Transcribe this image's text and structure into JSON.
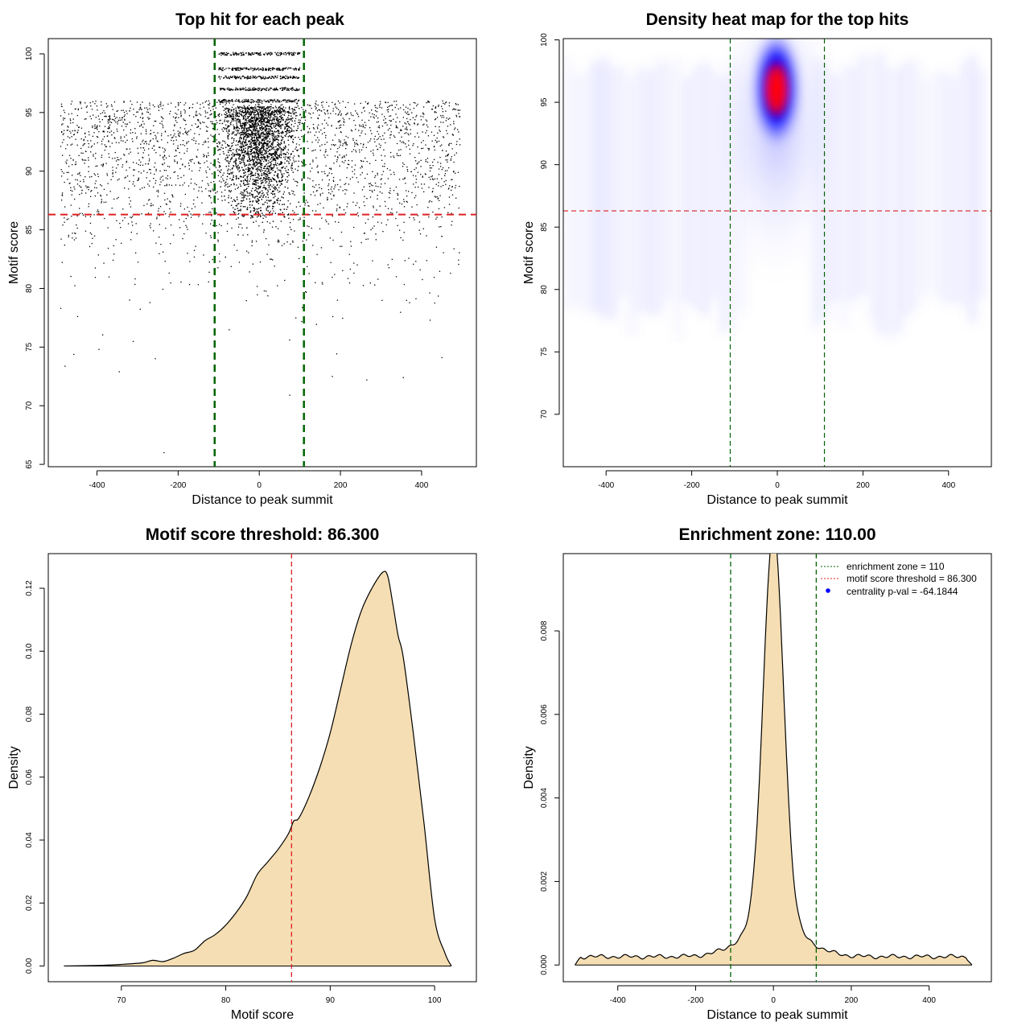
{
  "chart_data": [
    {
      "id": "scatter",
      "type": "scatter",
      "title": "Top hit for each peak",
      "xlabel": "Distance to peak summit",
      "ylabel": "Motif score",
      "xlim": [
        -520,
        535
      ],
      "ylim": [
        64.8,
        101.3
      ],
      "xticks": [
        -400,
        -200,
        0,
        200,
        400
      ],
      "yticks": [
        65,
        70,
        75,
        80,
        85,
        90,
        95,
        100
      ],
      "grid": false,
      "hline": 86.3,
      "vlines": [
        -110,
        110
      ],
      "hline_color": "#dd2020",
      "vline_color": "#006400",
      "point_color": "#000000",
      "background_points": {
        "x_range": [
          -490,
          495
        ],
        "y_distribution": "peaked near 96, spread 72-99"
      },
      "central_points": {
        "x_range": [
          -110,
          110
        ],
        "y_concentration": [
          88,
          99.5
        ],
        "peak_rows": [
          96,
          97,
          98,
          98.7,
          100
        ]
      },
      "sample_points": [
        {
          "x": -235,
          "y": 66.0
        },
        {
          "x": 75,
          "y": 70.9
        },
        {
          "x": 265,
          "y": 72.2
        },
        {
          "x": -345,
          "y": 72.9
        },
        {
          "x": 180,
          "y": 72.5
        },
        {
          "x": 355,
          "y": 72.4
        },
        {
          "x": -395,
          "y": 74.8
        },
        {
          "x": 450,
          "y": 74.1
        }
      ]
    },
    {
      "id": "heatmap",
      "type": "heatmap",
      "title": "Density heat map for the top hits",
      "xlabel": "Distance to peak summit",
      "ylabel": "Motif score",
      "xlim": [
        -500,
        500
      ],
      "ylim": [
        65.8,
        100.1
      ],
      "xticks": [
        -400,
        -200,
        0,
        200,
        400
      ],
      "yticks": [
        70,
        75,
        80,
        85,
        90,
        95,
        100
      ],
      "hline": 86.3,
      "vlines": [
        -110,
        110
      ],
      "peak": {
        "x": 0,
        "y": 95.7
      },
      "colors": [
        "#ffffff",
        "#0000ff",
        "#ff0000"
      ]
    },
    {
      "id": "score_density",
      "type": "area",
      "title": "Motif score threshold: 86.300",
      "xlabel": "Motif score",
      "ylabel": "Density",
      "xlim": [
        63,
        104
      ],
      "ylim": [
        -0.005,
        0.131
      ],
      "xticks": [
        70,
        80,
        90,
        100
      ],
      "yticks": [
        0.0,
        0.02,
        0.04,
        0.06,
        0.08,
        0.1,
        0.12
      ],
      "ytick_labels": [
        "0.00",
        "0.02",
        "0.04",
        "0.06",
        "0.08",
        "0.10",
        "0.12"
      ],
      "vline": 86.3,
      "fill": "#f5deb3",
      "x": [
        64.5,
        68,
        70,
        72,
        73,
        74,
        75,
        76,
        77,
        78,
        79,
        80,
        81,
        82,
        83,
        84,
        85,
        86,
        86.5,
        87,
        88,
        89,
        90,
        91,
        92,
        93,
        94,
        95,
        95.5,
        96,
        96.5,
        97,
        98,
        99,
        100,
        101,
        101.6
      ],
      "y": [
        0.0,
        0.0002,
        0.0005,
        0.001,
        0.0018,
        0.0014,
        0.0025,
        0.004,
        0.005,
        0.008,
        0.01,
        0.013,
        0.017,
        0.022,
        0.029,
        0.033,
        0.037,
        0.042,
        0.046,
        0.047,
        0.054,
        0.063,
        0.074,
        0.088,
        0.102,
        0.113,
        0.12,
        0.125,
        0.124,
        0.115,
        0.105,
        0.098,
        0.073,
        0.045,
        0.015,
        0.004,
        0.0
      ]
    },
    {
      "id": "distance_density",
      "type": "area",
      "title": "Enrichment zone: 110.00",
      "xlabel": "Distance to peak summit",
      "ylabel": "Density",
      "xlim": [
        -540,
        560
      ],
      "ylim": [
        -0.0004,
        0.00985
      ],
      "xticks": [
        -400,
        -200,
        0,
        200,
        400
      ],
      "yticks": [
        0.0,
        0.002,
        0.004,
        0.006,
        0.008
      ],
      "ytick_labels": [
        "0.000",
        "0.002",
        "0.004",
        "0.006",
        "0.008"
      ],
      "vlines": [
        -110,
        110
      ],
      "fill": "#f5deb3",
      "baseline": 0.0002,
      "noise": 5e-05,
      "peak_height": 0.0094,
      "peak_sigma": 26,
      "shoulder_height": 0.0008,
      "shoulder_sigma": 75,
      "x_range": [
        -510,
        510
      ],
      "legend": {
        "position": "top-right",
        "entries": [
          {
            "label": "enrichment zone = 110",
            "style": "dotted-line",
            "color": "#006400"
          },
          {
            "label": "motif score threshold = 86.300",
            "style": "dotted-line",
            "color": "#dd2020"
          },
          {
            "label": "centrality p-val = -64.1844",
            "style": "point",
            "color": "#0000ff"
          }
        ]
      }
    }
  ]
}
